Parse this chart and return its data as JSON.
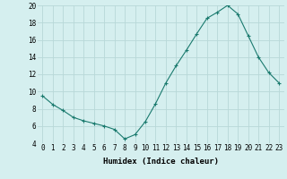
{
  "xlabel": "Humidex (Indice chaleur)",
  "x": [
    0,
    1,
    2,
    3,
    4,
    5,
    6,
    7,
    8,
    9,
    10,
    11,
    12,
    13,
    14,
    15,
    16,
    17,
    18,
    19,
    20,
    21,
    22,
    23
  ],
  "y": [
    9.5,
    8.5,
    7.8,
    7.0,
    6.6,
    6.3,
    6.0,
    5.6,
    4.5,
    5.0,
    6.5,
    8.6,
    11.0,
    13.0,
    14.8,
    16.7,
    18.5,
    19.2,
    20.0,
    19.0,
    16.5,
    14.0,
    12.2,
    11.0
  ],
  "line_color": "#1a7a6e",
  "marker": "+",
  "bg_color": "#d5efef",
  "grid_color": "#b8d8d8",
  "ylim": [
    4,
    20
  ],
  "yticks": [
    4,
    6,
    8,
    10,
    12,
    14,
    16,
    18,
    20
  ],
  "xticks": [
    0,
    1,
    2,
    3,
    4,
    5,
    6,
    7,
    8,
    9,
    10,
    11,
    12,
    13,
    14,
    15,
    16,
    17,
    18,
    19,
    20,
    21,
    22,
    23
  ],
  "xtick_labels": [
    "0",
    "1",
    "2",
    "3",
    "4",
    "5",
    "6",
    "7",
    "8",
    "9",
    "10",
    "11",
    "12",
    "13",
    "14",
    "15",
    "16",
    "17",
    "18",
    "19",
    "20",
    "21",
    "22",
    "23"
  ],
  "label_fontsize": 6.5,
  "tick_fontsize": 5.5
}
